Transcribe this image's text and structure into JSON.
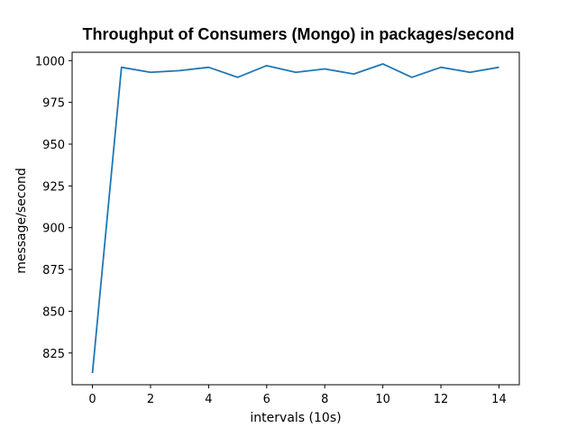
{
  "chart_data": {
    "type": "line",
    "title": "Throughput of Consumers (Mongo) in packages/second",
    "xlabel": "intervals (10s)",
    "ylabel": "message/second",
    "xlim": [
      -0.7,
      14.7
    ],
    "ylim": [
      806,
      1005
    ],
    "xticks": [
      0,
      2,
      4,
      6,
      8,
      10,
      12,
      14
    ],
    "yticks": [
      825,
      850,
      875,
      900,
      925,
      950,
      975,
      1000
    ],
    "grid": false,
    "legend": "none",
    "series": [
      {
        "color": "#1f77b4",
        "x": [
          0,
          1,
          2,
          3,
          4,
          5,
          6,
          7,
          8,
          9,
          10,
          11,
          12,
          13,
          14
        ],
        "y": [
          813,
          996,
          993,
          994,
          996,
          990,
          997,
          993,
          995,
          992,
          998,
          990,
          996,
          993,
          996
        ]
      }
    ]
  }
}
